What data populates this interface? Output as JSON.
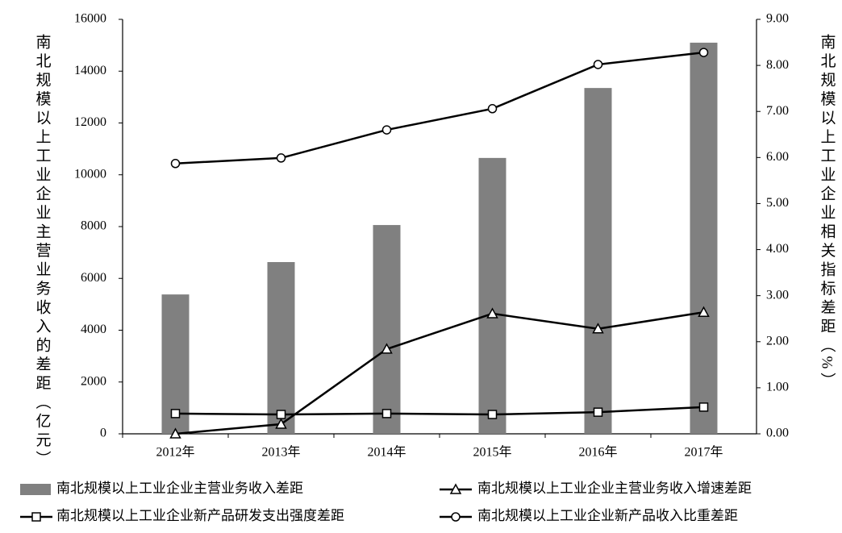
{
  "chart_data": {
    "type": "combo",
    "categories": [
      "2012年",
      "2013年",
      "2014年",
      "2015年",
      "2016年",
      "2017年"
    ],
    "y_label": "南北规模以上工业企业主营业务收入的差距（亿元）",
    "y2_label": "南北规模以上工业企业相关指标差距（%）",
    "ylim": [
      0,
      16000
    ],
    "yticks": [
      0,
      2000,
      4000,
      6000,
      8000,
      10000,
      12000,
      14000,
      16000
    ],
    "y2lim": [
      0,
      9
    ],
    "y2ticks": [
      {
        "value": 0,
        "label": "0.00"
      },
      {
        "value": 1,
        "label": "1.00"
      },
      {
        "value": 2,
        "label": "2.00"
      },
      {
        "value": 3,
        "label": "3.00"
      },
      {
        "value": 4,
        "label": "4.00"
      },
      {
        "value": 5,
        "label": "5.00"
      },
      {
        "value": 6,
        "label": "6.00"
      },
      {
        "value": 7,
        "label": "7.00"
      },
      {
        "value": 8,
        "label": "8.00"
      },
      {
        "value": 9,
        "label": "9.00"
      }
    ],
    "grid": false,
    "series": [
      {
        "name": "南北规模以上工业企业主营业务收入差距",
        "type": "bar",
        "color": "#808080",
        "values": [
          5380,
          6630,
          8060,
          10650,
          13350,
          15100
        ]
      },
      {
        "name": "南北规模以上工业企业主营业务收入增速差距",
        "type": "line",
        "marker": "triangle",
        "color": "#000000",
        "axis": "y2",
        "values": [
          0.0,
          0.21,
          1.84,
          2.61,
          2.28,
          2.64
        ]
      },
      {
        "name": "南北规模以上工业企业新产品研发支出强度差距",
        "type": "line",
        "marker": "square",
        "color": "#000000",
        "axis": "y2",
        "values": [
          0.44,
          0.42,
          0.44,
          0.42,
          0.47,
          0.58
        ]
      },
      {
        "name": "南北规模以上工业企业新产品收入比重差距",
        "type": "line",
        "marker": "circle",
        "color": "#000000",
        "axis": "y2",
        "values": [
          5.87,
          5.99,
          6.6,
          7.06,
          8.02,
          8.28
        ]
      }
    ]
  }
}
